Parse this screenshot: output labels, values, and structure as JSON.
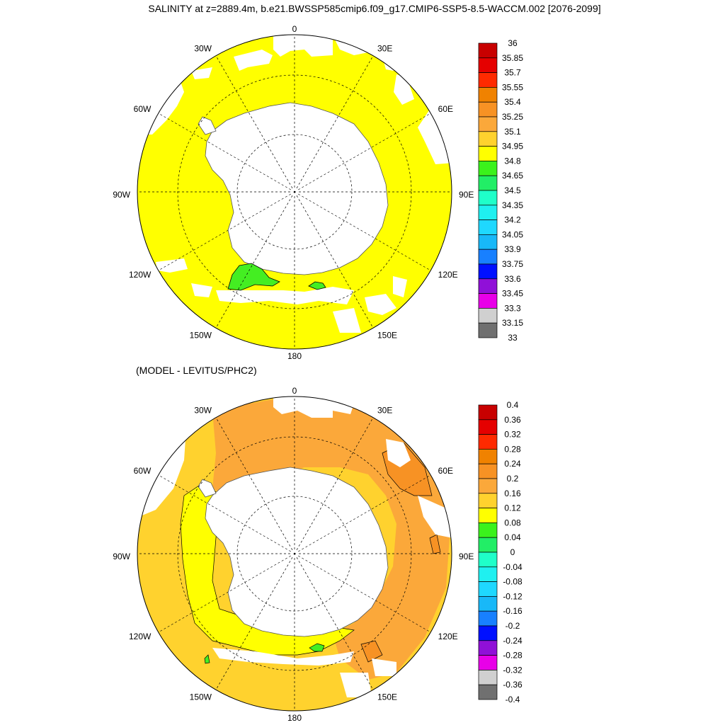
{
  "figure": {
    "title": "SALINITY at z=2889.4m, b.e21.BWSSP585cmip6.f09_g17.CMIP6-SSP5-8.5-WACCM.002 [2076-2099]",
    "subtitle": "(MODEL - LEVITUS/PHC2)"
  },
  "maps": [
    {
      "name": "salinity-map",
      "lon_labels": [
        {
          "lon": 0,
          "text": "0"
        },
        {
          "lon": 30,
          "text": "30E"
        },
        {
          "lon": 60,
          "text": "60E"
        },
        {
          "lon": 90,
          "text": "90E"
        },
        {
          "lon": 120,
          "text": "120E"
        },
        {
          "lon": 150,
          "text": "150E"
        },
        {
          "lon": 180,
          "text": "180"
        },
        {
          "lon": -150,
          "text": "150W"
        },
        {
          "lon": -120,
          "text": "120W"
        },
        {
          "lon": -90,
          "text": "90W"
        },
        {
          "lon": -60,
          "text": "60W"
        },
        {
          "lon": -30,
          "text": "30W"
        }
      ],
      "ocean_color": "#ffff00",
      "patches": [
        {
          "color": "#44ee22",
          "label": "34.65-34.8"
        },
        {
          "color": "#44ee22",
          "label": "34.65-34.8"
        }
      ],
      "colorbar": {
        "labels": [
          "36",
          "35.85",
          "35.7",
          "35.55",
          "35.4",
          "35.25",
          "35.1",
          "34.95",
          "34.8",
          "34.65",
          "34.5",
          "34.35",
          "34.2",
          "34.05",
          "33.9",
          "33.75",
          "33.6",
          "33.45",
          "33.3",
          "33.15",
          "33"
        ],
        "colors": [
          "#c80000",
          "#e50000",
          "#ff2a00",
          "#f08200",
          "#f79224",
          "#fba83a",
          "#ffd22e",
          "#ffff00",
          "#3bf21c",
          "#22ee66",
          "#1fffc9",
          "#1ff0f0",
          "#1fd8ff",
          "#18b8f8",
          "#1880ff",
          "#0010ff",
          "#9010d8",
          "#e800e8",
          "#d0d0d0",
          "#707070"
        ]
      }
    },
    {
      "name": "difference-map",
      "lon_labels": [
        {
          "lon": 0,
          "text": "0"
        },
        {
          "lon": 30,
          "text": "30E"
        },
        {
          "lon": 60,
          "text": "60E"
        },
        {
          "lon": 90,
          "text": "90E"
        },
        {
          "lon": 120,
          "text": "120E"
        },
        {
          "lon": 150,
          "text": "150E"
        },
        {
          "lon": 180,
          "text": "180"
        },
        {
          "lon": -150,
          "text": "150W"
        },
        {
          "lon": -120,
          "text": "120W"
        },
        {
          "lon": -90,
          "text": "90W"
        },
        {
          "lon": -60,
          "text": "60W"
        },
        {
          "lon": -30,
          "text": "30W"
        }
      ],
      "ocean_color": "#ffd22e",
      "region_colors": {
        "orange_sector": "#fba83a",
        "dark_orange": "#f79224",
        "yellow_band": "#ffff00",
        "green_patch": "#44ee22"
      },
      "colorbar": {
        "labels": [
          "0.4",
          "0.36",
          "0.32",
          "0.28",
          "0.24",
          "0.2",
          "0.16",
          "0.12",
          "0.08",
          "0.04",
          "0",
          "-0.04",
          "-0.08",
          "-0.12",
          "-0.16",
          "-0.2",
          "-0.24",
          "-0.28",
          "-0.32",
          "-0.36",
          "-0.4"
        ],
        "colors": [
          "#c80000",
          "#e50000",
          "#ff2a00",
          "#f08200",
          "#f79224",
          "#fba83a",
          "#ffd22e",
          "#ffff00",
          "#3bf21c",
          "#22ee66",
          "#1fffc9",
          "#1ff0f0",
          "#1fd8ff",
          "#18b8f8",
          "#1880ff",
          "#0010ff",
          "#9010d8",
          "#e800e8",
          "#d0d0d0",
          "#707070"
        ]
      }
    }
  ]
}
